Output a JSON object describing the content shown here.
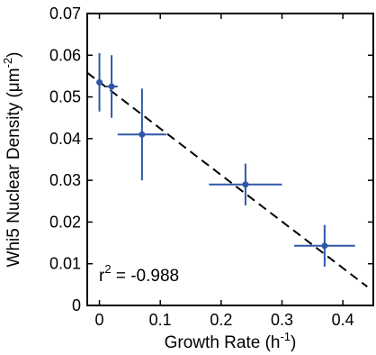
{
  "chart_data": {
    "type": "scatter",
    "title": "",
    "xlabel": "Growth Rate (h",
    "xlabel_sup": "-1",
    "xlabel_tail": ")",
    "ylabel": "Whi5 Nuclear Density (μm",
    "ylabel_sup": "-2",
    "ylabel_tail": ")",
    "xlim": [
      -0.02,
      0.45
    ],
    "ylim": [
      0,
      0.07
    ],
    "xticks": [
      0,
      0.1,
      0.2,
      0.3,
      0.4
    ],
    "xtick_labels": [
      "0",
      "0.1",
      "0.2",
      "0.3",
      "0.4"
    ],
    "yticks": [
      0,
      0.01,
      0.02,
      0.03,
      0.04,
      0.05,
      0.06,
      0.07
    ],
    "ytick_labels": [
      "0",
      "0.01",
      "0.02",
      "0.03",
      "0.04",
      "0.05",
      "0.06",
      "0.07"
    ],
    "grid": false,
    "series": [
      {
        "points": [
          {
            "x": 0.0,
            "y": 0.0535,
            "xerr": 0.0,
            "yerr": 0.007
          },
          {
            "x": 0.02,
            "y": 0.0525,
            "xerr": 0.01,
            "yerr": 0.0075
          },
          {
            "x": 0.07,
            "y": 0.041,
            "xerr": 0.04,
            "yerr": 0.011
          },
          {
            "x": 0.24,
            "y": 0.029,
            "xerr": 0.06,
            "yerr": 0.005
          },
          {
            "x": 0.37,
            "y": 0.0143,
            "xerr": 0.05,
            "yerr": 0.005
          }
        ]
      }
    ],
    "fit_line": {
      "x": [
        -0.02,
        0.44
      ],
      "y": [
        0.0558,
        0.0045
      ],
      "style": "dashed"
    },
    "annotation": {
      "r_text": "r",
      "r_sup": "2",
      "value_text": " = -0.988"
    },
    "colors": {
      "series": "#2f57a8",
      "fit": "#000000",
      "axes": "#000000"
    }
  }
}
